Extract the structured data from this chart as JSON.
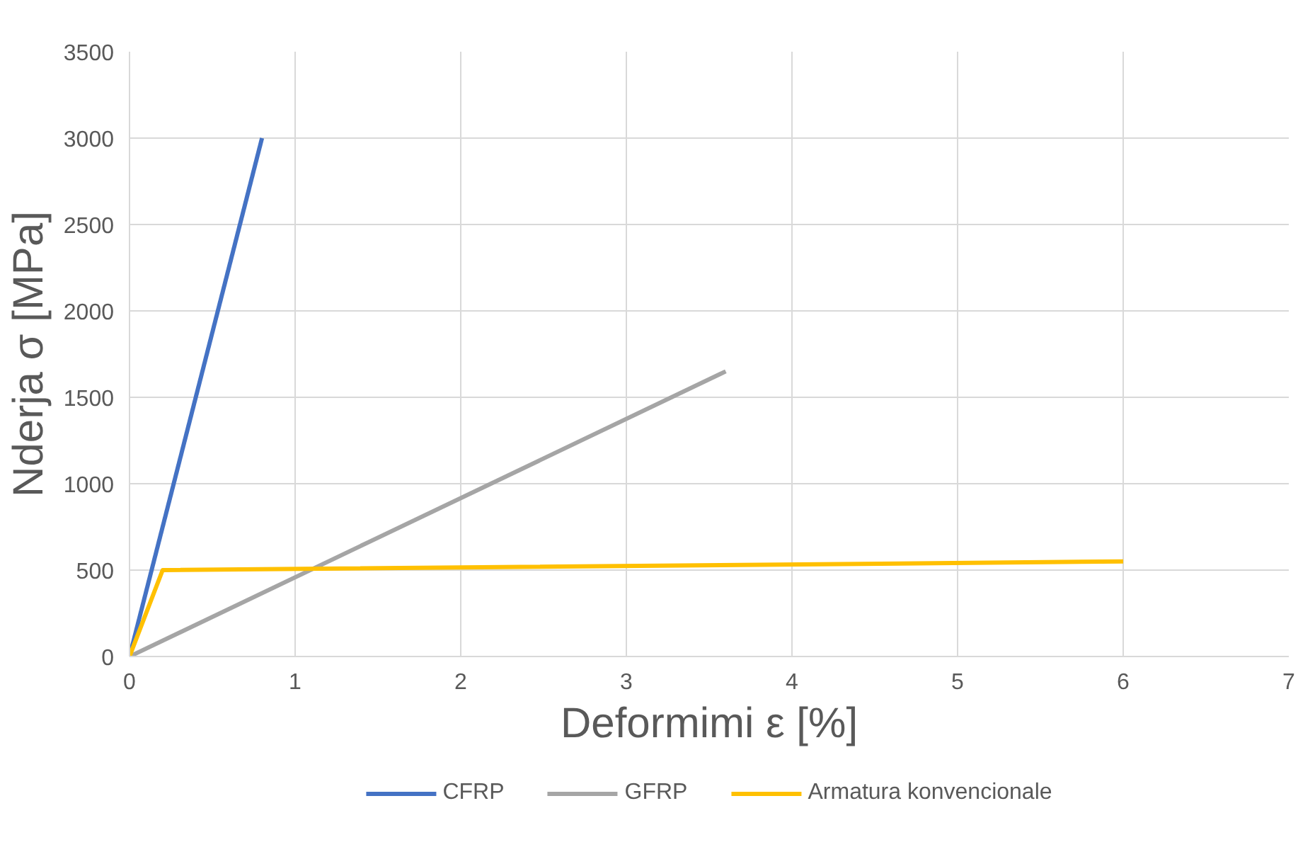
{
  "chart_data": {
    "type": "line",
    "xlabel": "Deformimi ε [%]",
    "ylabel": "Nderja σ [MPa]",
    "xlim": [
      0,
      7
    ],
    "ylim": [
      0,
      3500
    ],
    "xticks": [
      0,
      1,
      2,
      3,
      4,
      5,
      6,
      7
    ],
    "yticks": [
      0,
      500,
      1000,
      1500,
      2000,
      2500,
      3000,
      3500
    ],
    "grid": true,
    "legend": "bottom",
    "marker": "none",
    "line_style": "solid",
    "series": [
      {
        "name": "CFRP",
        "color": "#4472c4",
        "x": [
          0,
          0.8
        ],
        "values": [
          0,
          3000
        ]
      },
      {
        "name": "GFRP",
        "color": "#a5a5a5",
        "x": [
          0,
          3.6
        ],
        "values": [
          0,
          1650
        ]
      },
      {
        "name": "Armatura konvencionale",
        "color": "#ffc000",
        "x": [
          0,
          0.2,
          6
        ],
        "values": [
          0,
          500,
          550
        ]
      }
    ]
  }
}
